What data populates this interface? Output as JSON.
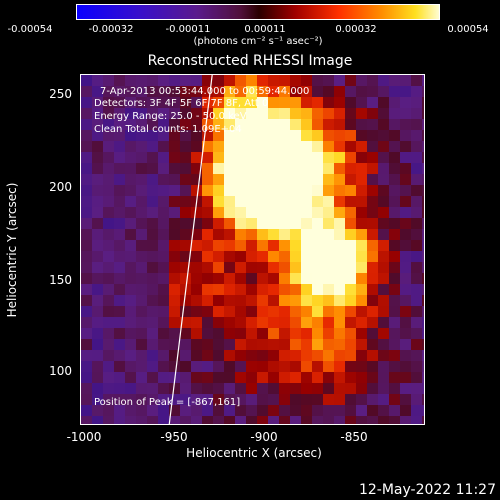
{
  "colorbar": {
    "ticks": [
      "-0.00054",
      "-0.00032",
      "-0.00011",
      "0.00011",
      "0.00032",
      "0.00054"
    ],
    "unit": "(photons cm⁻² s⁻¹ asec⁻²)",
    "vmin": -0.00054,
    "vmax": 0.00054
  },
  "title": "Reconstructed RHESSI Image",
  "annotations": {
    "time_range": "7-Apr-2013 00:53:44.000 to 00:59:44.000",
    "detectors": "Detectors: 3F 4F 5F 6F 7F 8F, Att 0",
    "energy_range": "Energy Range: 25.0 - 50.0 keV",
    "clean_info": "Clean     Total counts: 1.09E+04",
    "peak_position": "Position of Peak = [-867,161]"
  },
  "axes": {
    "xlabel": "Heliocentric X (arcsec)",
    "ylabel": "Heliocentric Y (arcsec)",
    "xticks": [
      "-1000",
      "-950",
      "-900",
      "-850"
    ],
    "yticks": [
      "250",
      "200",
      "150",
      "100"
    ],
    "xlim": [
      -1007,
      -815
    ],
    "ylim": [
      70,
      265
    ]
  },
  "image": {
    "type": "heatmap",
    "colormap": "blue-purple-red-yellow-white",
    "limb_line": true,
    "peak": [
      -867,
      161
    ]
  },
  "timestamp": "12-May-2022 11:27"
}
